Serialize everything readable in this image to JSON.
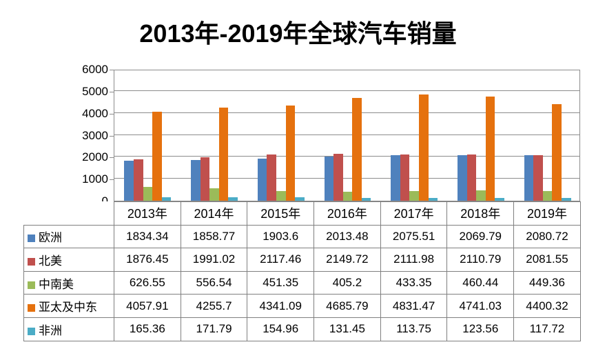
{
  "chart_data": {
    "type": "bar",
    "title": "2013年-2019年全球汽车销量",
    "xlabel": "",
    "ylabel": "",
    "categories": [
      "2013年",
      "2014年",
      "2015年",
      "2016年",
      "2017年",
      "2018年",
      "2019年"
    ],
    "series": [
      {
        "name": "欧洲",
        "color": "#4F81BD",
        "values": [
          1834.34,
          1858.77,
          1903.6,
          2013.48,
          2075.51,
          2069.79,
          2080.72
        ]
      },
      {
        "name": "北美",
        "color": "#C0504D",
        "values": [
          1876.45,
          1991.02,
          2117.46,
          2149.72,
          2111.98,
          2110.79,
          2081.55
        ]
      },
      {
        "name": "中南美",
        "color": "#9BBB59",
        "values": [
          626.55,
          556.54,
          451.35,
          405.2,
          433.35,
          460.44,
          449.36
        ]
      },
      {
        "name": "亚太及中东",
        "color": "#E5710E",
        "values": [
          4057.91,
          4255.7,
          4341.09,
          4685.79,
          4831.47,
          4741.03,
          4400.32
        ]
      },
      {
        "name": "非洲",
        "color": "#4BACC6",
        "values": [
          165.36,
          171.79,
          154.96,
          131.45,
          113.75,
          123.56,
          117.72
        ]
      }
    ],
    "ylim": [
      0,
      6000
    ],
    "yticks": [
      0,
      1000,
      2000,
      3000,
      4000,
      5000,
      6000
    ],
    "grid": "horizontal",
    "legend_position": "data-table-row-keys",
    "data_table_shown": true
  },
  "colors": {
    "gridline": "#8C8C8C",
    "table_border": "#7F7F7F",
    "title_text": "#000000",
    "body_text": "#000000",
    "background": "#FFFFFF"
  }
}
